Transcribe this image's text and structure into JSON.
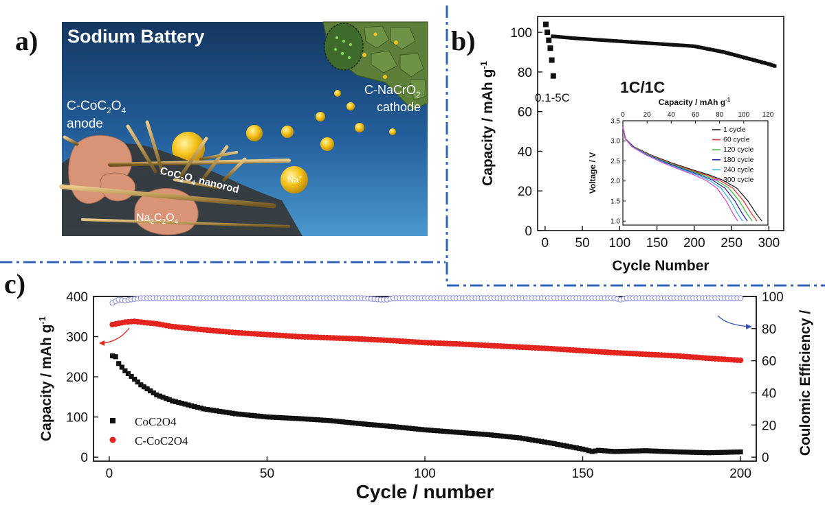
{
  "panel_labels": {
    "a": "a)",
    "b": "b)",
    "c": "c)"
  },
  "colors": {
    "divider": "#2f62b8",
    "ocean_top": "#14375f",
    "ocean_bottom": "#3d8cc8",
    "red_series": "#e3241f",
    "black_series": "#111111",
    "ce_series": "#8c8fdc"
  },
  "schematic": {
    "title": "Sodium Battery",
    "anode_line1": "C-CoC",
    "anode_sub1": "2",
    "anode_line1b": "O",
    "anode_sub1b": "4",
    "anode_line2": "anode",
    "cathode_line1": "C-NaCrO",
    "cathode_sub1": "2",
    "cathode_line2": "cathode",
    "nanorod_main": "CoC",
    "nanorod_sub1": "2",
    "nanorod_mid": "O",
    "nanorod_sub2": "4",
    "nanorod_tail": " nanorod",
    "product_main": "Na",
    "product_sub1": "2",
    "product_mid": "C",
    "product_sub2": "2",
    "product_mid2": "O",
    "product_sub3": "4",
    "ion": "Na",
    "ion_sup": "+"
  },
  "chart_data": [
    {
      "id": "b-main",
      "type": "scatter",
      "xlabel": "Cycle Number",
      "ylabel_main": "Capacity / mAh g",
      "ylabel_sup": "-1",
      "xlim": [
        -10,
        320
      ],
      "ylim": [
        0,
        108
      ],
      "xticks": [
        0,
        50,
        100,
        150,
        200,
        250,
        300
      ],
      "yticks": [
        0,
        20,
        40,
        60,
        80,
        100
      ],
      "annotations": {
        "rate_test": "0.1-5C",
        "rate": "1C/1C"
      },
      "series": [
        {
          "x": [
            1,
            3,
            5,
            7,
            9,
            11
          ],
          "y": [
            104,
            100,
            96,
            92,
            86,
            78
          ]
        },
        {
          "x": [
            10,
            40,
            80,
            120,
            160,
            200,
            240,
            270,
            300,
            308
          ],
          "y": [
            98,
            97,
            96,
            95,
            94,
            93,
            90,
            87,
            84,
            83
          ]
        }
      ]
    },
    {
      "id": "b-inset",
      "type": "line",
      "xlabel_main": "Capacity / mAh g",
      "xlabel_sup": "-1",
      "ylabel": "Voltage / V",
      "xlim": [
        0,
        120
      ],
      "ylim": [
        0.9,
        3.5
      ],
      "xticks": [
        0,
        20,
        40,
        60,
        80,
        100,
        120
      ],
      "yticks": [
        1.0,
        1.5,
        2.0,
        2.5,
        3.0,
        3.5
      ],
      "series": [
        {
          "name": "1 cycle",
          "color": "#222222",
          "end_x": 115
        },
        {
          "name": "60 cycle",
          "color": "#e03a3a",
          "end_x": 111
        },
        {
          "name": "120 cycle",
          "color": "#3fbf3f",
          "end_x": 107
        },
        {
          "name": "180 cycle",
          "color": "#2a2aa8",
          "end_x": 103
        },
        {
          "name": "240 cycle",
          "color": "#37b6d8",
          "end_x": 99
        },
        {
          "name": "300 cycle",
          "color": "#d24bd2",
          "end_x": 95
        }
      ],
      "profile_x_frac": [
        0,
        0.02,
        0.08,
        0.2,
        0.35,
        0.5,
        0.62,
        0.72,
        0.82,
        0.9,
        0.96,
        1.0
      ],
      "profile_v": [
        3.35,
        3.05,
        2.85,
        2.65,
        2.45,
        2.28,
        2.15,
        2.02,
        1.82,
        1.5,
        1.18,
        1.0
      ]
    },
    {
      "id": "c-main",
      "type": "scatter",
      "xlabel": "Cycle / number",
      "ylabel_main": "Capacity / mAh g",
      "ylabel_sup": "-1",
      "y2label": "Coulomic Efficiency /",
      "xlim": [
        -5,
        205
      ],
      "ylim": [
        -10,
        400
      ],
      "y2lim": [
        -2.5,
        100
      ],
      "xticks": [
        0,
        50,
        100,
        150,
        200
      ],
      "yticks": [
        0,
        100,
        200,
        300,
        400
      ],
      "y2ticks": [
        0,
        20,
        40,
        60,
        80,
        100
      ],
      "legend": {
        "placement": "bottom-left"
      },
      "series": [
        {
          "name_main": "CoC",
          "name_sub1": "2",
          "name_mid": "O",
          "name_sub2": "4",
          "marker": "square",
          "color": "#111111",
          "x": [
            1,
            2,
            3,
            5,
            10,
            15,
            20,
            30,
            40,
            50,
            60,
            70,
            80,
            90,
            100,
            110,
            120,
            130,
            140,
            150,
            153,
            155,
            160,
            170,
            180,
            190,
            200
          ],
          "y": [
            252,
            250,
            233,
            215,
            180,
            155,
            140,
            120,
            108,
            100,
            96,
            91,
            83,
            76,
            68,
            62,
            56,
            48,
            35,
            20,
            14,
            17,
            14,
            16,
            13,
            11,
            13
          ]
        },
        {
          "name_main": "C-CoC",
          "name_sub1": "2",
          "name_mid": "O",
          "name_sub2": "4",
          "marker": "circle",
          "color": "#e3241f",
          "x": [
            1,
            3,
            5,
            8,
            10,
            15,
            20,
            30,
            40,
            50,
            60,
            70,
            80,
            90,
            100,
            110,
            120,
            130,
            140,
            150,
            160,
            170,
            180,
            190,
            200
          ],
          "y": [
            330,
            333,
            336,
            338,
            336,
            332,
            325,
            317,
            310,
            305,
            300,
            297,
            294,
            290,
            285,
            282,
            278,
            274,
            270,
            265,
            260,
            256,
            252,
            246,
            241
          ]
        },
        {
          "name": "CE",
          "axis": "right",
          "marker": "open-circle",
          "color": "#8c8fdc",
          "x": [
            1,
            3,
            5,
            10,
            20,
            40,
            60,
            80,
            86,
            88,
            90,
            100,
            120,
            140,
            160,
            162,
            164,
            180,
            200
          ],
          "y": [
            96,
            98,
            97.5,
            99,
            99,
            99,
            99,
            99,
            98,
            98,
            99,
            99,
            99,
            99,
            99,
            98,
            99,
            99,
            99
          ]
        }
      ]
    }
  ]
}
